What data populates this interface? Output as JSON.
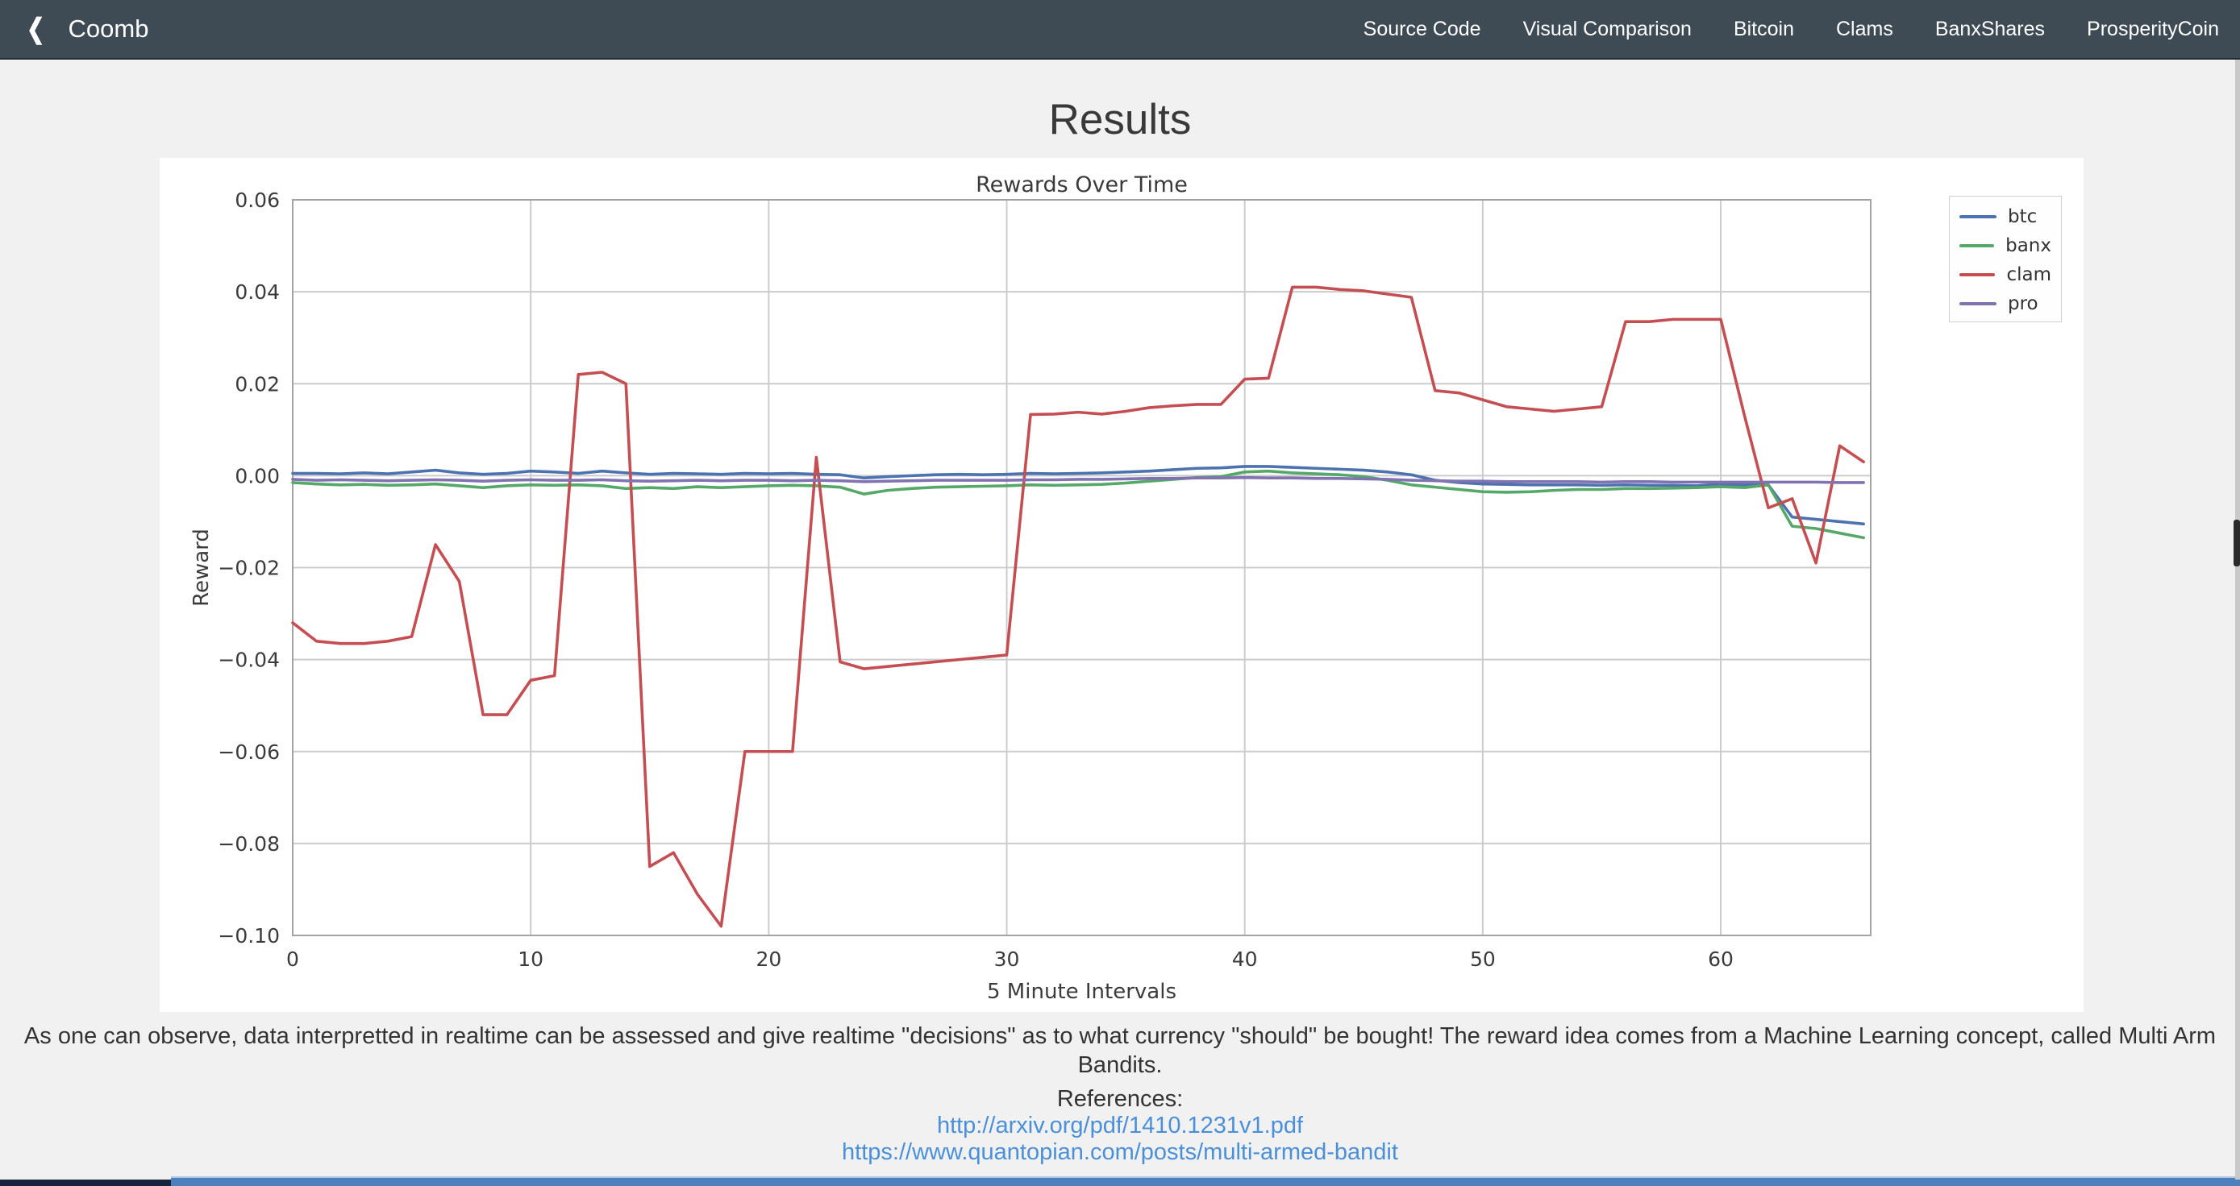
{
  "navbar": {
    "back_icon": "❮",
    "brand": "Coomb",
    "items": [
      "Source Code",
      "Visual Comparison",
      "Bitcoin",
      "Clams",
      "BanxShares",
      "ProsperityCoin"
    ]
  },
  "page": {
    "title": "Results"
  },
  "description": "As one can observe, data interpretted in realtime can be assessed and give realtime \"decisions\" as to what currency \"should\" be bought! The reward idea comes from a Machine Learning concept, called Multi Arm Bandits.",
  "references": {
    "heading": "References:",
    "links": [
      "http://arxiv.org/pdf/1410.1231v1.pdf",
      "https://www.quantopian.com/posts/multi-armed-bandit"
    ]
  },
  "colors": {
    "navbar_bg": "#3e4a54",
    "page_bg": "#f1f1f1",
    "figure_bg": "#ffffff",
    "link_blue": "#4a90d9",
    "footer_blue": "#4d80bc",
    "footer_navy": "#16233c",
    "grid": "#cccccc",
    "axis_frame": "#a3a3a3",
    "chart_text": "#3b3b3b"
  },
  "chart_data": {
    "type": "line",
    "title": "Rewards Over Time",
    "xlabel": "5 Minute Intervals",
    "ylabel": "Reward",
    "x_unit": "interval index (one point per 5-minute interval)",
    "n_points": 67,
    "xlim": [
      0,
      66.3
    ],
    "ylim": [
      -0.1,
      0.06
    ],
    "xticks": [
      0,
      10,
      20,
      30,
      40,
      50,
      60
    ],
    "yticks": [
      0.06,
      0.04,
      0.02,
      0.0,
      -0.02,
      -0.04,
      -0.06,
      -0.08,
      -0.1
    ],
    "grid": true,
    "legend_position": "upper-right-outside",
    "series": [
      {
        "name": "btc",
        "color": "#4C72B0",
        "values": [
          0.0005,
          0.0005,
          0.0004,
          0.0006,
          0.0004,
          0.0008,
          0.0012,
          0.0006,
          0.0003,
          0.0005,
          0.001,
          0.0008,
          0.0005,
          0.001,
          0.0006,
          0.0003,
          0.0005,
          0.0004,
          0.0003,
          0.0005,
          0.0004,
          0.0005,
          0.0003,
          0.0002,
          -0.0005,
          -0.0002,
          0.0,
          0.0002,
          0.0003,
          0.0002,
          0.0003,
          0.0005,
          0.0004,
          0.0005,
          0.0006,
          0.0008,
          0.001,
          0.0013,
          0.0016,
          0.0017,
          0.002,
          0.002,
          0.0018,
          0.0016,
          0.0014,
          0.0012,
          0.0008,
          0.0002,
          -0.001,
          -0.0015,
          -0.0018,
          -0.0019,
          -0.002,
          -0.002,
          -0.002,
          -0.0021,
          -0.002,
          -0.0021,
          -0.0021,
          -0.0022,
          -0.0018,
          -0.002,
          -0.002,
          -0.009,
          -0.0095,
          -0.01,
          -0.0105
        ]
      },
      {
        "name": "banx",
        "color": "#55A868",
        "values": [
          -0.0015,
          -0.0018,
          -0.002,
          -0.0019,
          -0.0021,
          -0.002,
          -0.0018,
          -0.0022,
          -0.0026,
          -0.0022,
          -0.002,
          -0.0021,
          -0.002,
          -0.0022,
          -0.0028,
          -0.0026,
          -0.0028,
          -0.0024,
          -0.0026,
          -0.0024,
          -0.0022,
          -0.0021,
          -0.0022,
          -0.0025,
          -0.004,
          -0.0032,
          -0.0028,
          -0.0025,
          -0.0024,
          -0.0023,
          -0.0022,
          -0.002,
          -0.0021,
          -0.002,
          -0.0019,
          -0.0016,
          -0.0012,
          -0.0008,
          -0.0004,
          -0.0002,
          0.0008,
          0.001,
          0.0006,
          0.0004,
          0.0002,
          -0.0002,
          -0.001,
          -0.002,
          -0.0025,
          -0.003,
          -0.0035,
          -0.0036,
          -0.0035,
          -0.0032,
          -0.003,
          -0.003,
          -0.0028,
          -0.0028,
          -0.0027,
          -0.0026,
          -0.0024,
          -0.0026,
          -0.002,
          -0.011,
          -0.0115,
          -0.0125,
          -0.0135
        ]
      },
      {
        "name": "clam",
        "color": "#C44E52",
        "values": [
          -0.032,
          -0.036,
          -0.0365,
          -0.0365,
          -0.036,
          -0.035,
          -0.015,
          -0.023,
          -0.052,
          -0.052,
          -0.0445,
          -0.0435,
          0.022,
          0.0225,
          0.02,
          -0.085,
          -0.082,
          -0.091,
          -0.098,
          -0.06,
          -0.06,
          -0.06,
          0.004,
          -0.0405,
          -0.042,
          -0.0415,
          -0.041,
          -0.0405,
          -0.04,
          -0.0395,
          -0.039,
          0.0133,
          0.0134,
          0.0138,
          0.0134,
          0.014,
          0.0148,
          0.0152,
          0.0155,
          0.0155,
          0.021,
          0.0212,
          0.041,
          0.041,
          0.0405,
          0.0402,
          0.0395,
          0.0388,
          0.0185,
          0.018,
          0.0165,
          0.015,
          0.0145,
          0.014,
          0.0145,
          0.015,
          0.0335,
          0.0335,
          0.034,
          0.034,
          0.034,
          0.013,
          -0.007,
          -0.005,
          -0.019,
          0.0065,
          0.003
        ]
      },
      {
        "name": "pro",
        "color": "#8172B2",
        "values": [
          -0.0008,
          -0.001,
          -0.0009,
          -0.001,
          -0.0011,
          -0.001,
          -0.0009,
          -0.001,
          -0.0012,
          -0.001,
          -0.0009,
          -0.001,
          -0.001,
          -0.0009,
          -0.0011,
          -0.0012,
          -0.0011,
          -0.001,
          -0.0011,
          -0.001,
          -0.001,
          -0.0011,
          -0.001,
          -0.0011,
          -0.0013,
          -0.0012,
          -0.0011,
          -0.001,
          -0.001,
          -0.001,
          -0.001,
          -0.0009,
          -0.0009,
          -0.0008,
          -0.0008,
          -0.0007,
          -0.0006,
          -0.0006,
          -0.0005,
          -0.0005,
          -0.0004,
          -0.0005,
          -0.0005,
          -0.0006,
          -0.0006,
          -0.0007,
          -0.0008,
          -0.001,
          -0.0011,
          -0.0012,
          -0.0012,
          -0.0013,
          -0.0013,
          -0.0013,
          -0.0013,
          -0.0014,
          -0.0013,
          -0.0013,
          -0.0014,
          -0.0014,
          -0.0014,
          -0.0014,
          -0.0014,
          -0.0014,
          -0.0014,
          -0.0015,
          -0.0015
        ]
      }
    ]
  }
}
